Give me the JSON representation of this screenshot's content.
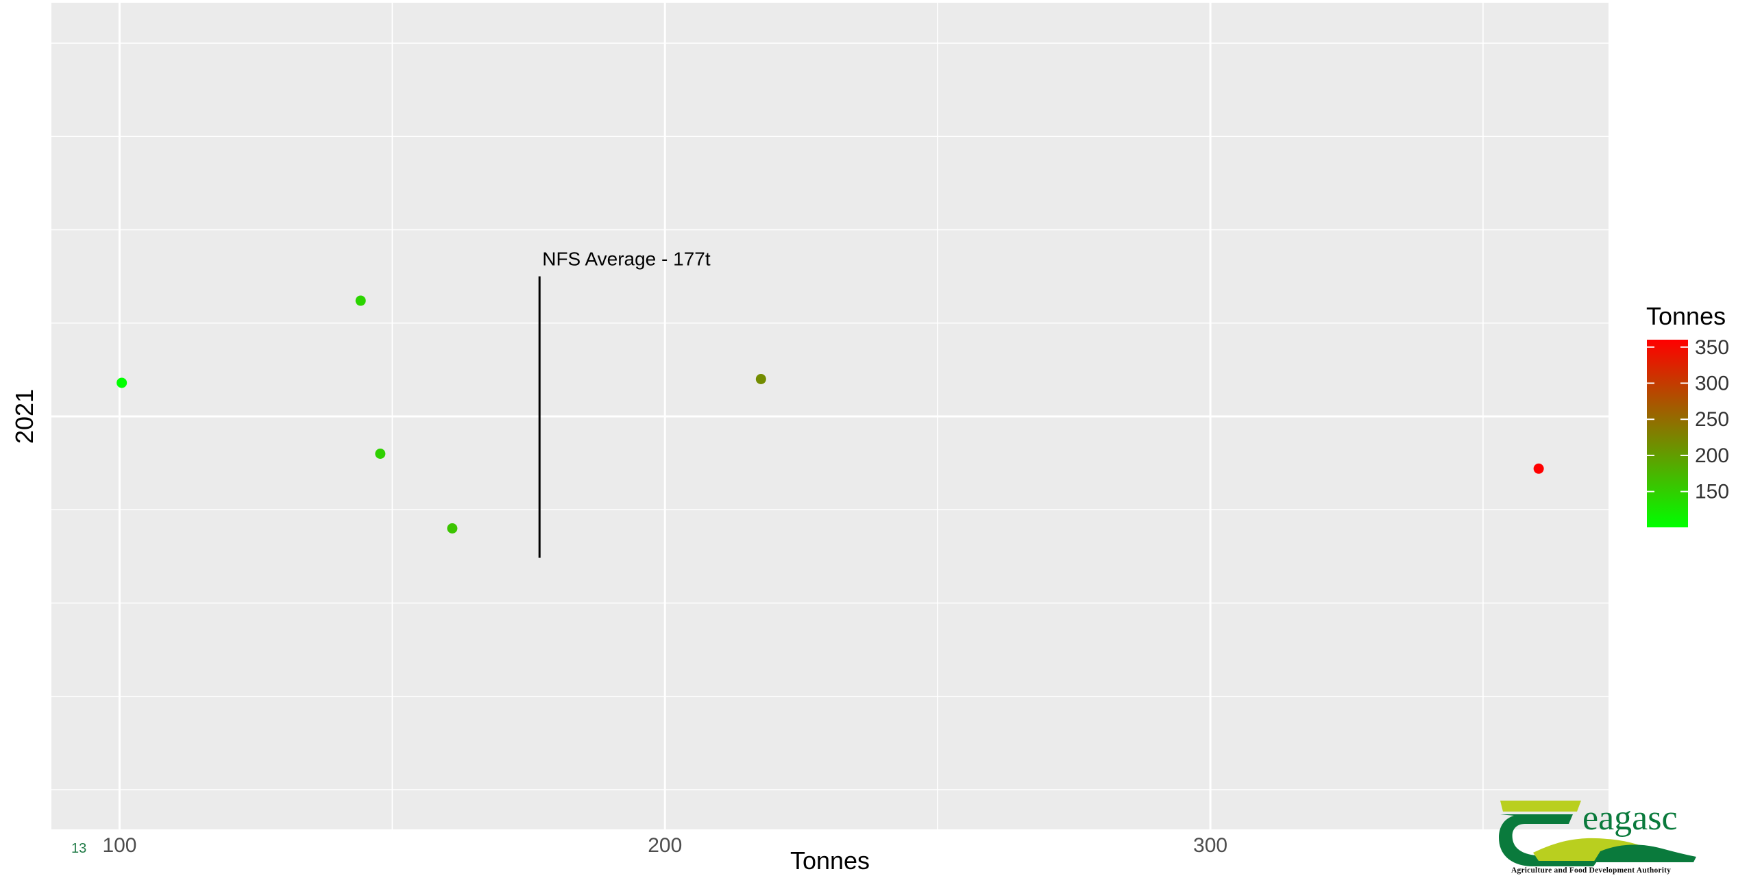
{
  "page_number": "13",
  "logo": {
    "wordmark": "eagasc",
    "tagline": "Agriculture and Food Development Authority",
    "colors": {
      "dark_green": "#0a7a3c",
      "light_green": "#b9cf1f"
    }
  },
  "chart_data": {
    "type": "scatter",
    "xlabel": "Tonnes",
    "ylabel": "2021",
    "xlim": [
      87.5,
      373
    ],
    "x_ticks": [
      100,
      200,
      300
    ],
    "x_tick_labels": [
      "100",
      "200",
      "300"
    ],
    "grid": true,
    "panel_background": "#ebebeb",
    "grid_color": "#ffffff",
    "points": [
      {
        "x": 100.4,
        "y": 0.09,
        "value": 100.4
      },
      {
        "x": 144.2,
        "y": 0.31,
        "value": 144.2
      },
      {
        "x": 147.8,
        "y": -0.1,
        "value": 147.8
      },
      {
        "x": 161.0,
        "y": -0.3,
        "value": 161.0
      },
      {
        "x": 217.6,
        "y": 0.1,
        "value": 217.6
      },
      {
        "x": 360.2,
        "y": -0.14,
        "value": 360.2
      }
    ],
    "annotation": {
      "text": "NFS Average - 177t",
      "x": 177,
      "y_range": [
        -0.5,
        0.5
      ]
    },
    "legend": {
      "title": "Tonnes",
      "position": "right",
      "low_color": "#00ff00",
      "high_color": "#ff0000",
      "ticks": [
        150,
        200,
        250,
        300,
        350
      ],
      "tick_labels": [
        "150",
        "200",
        "250",
        "300",
        "350"
      ],
      "range": [
        100.4,
        360.2
      ]
    }
  }
}
